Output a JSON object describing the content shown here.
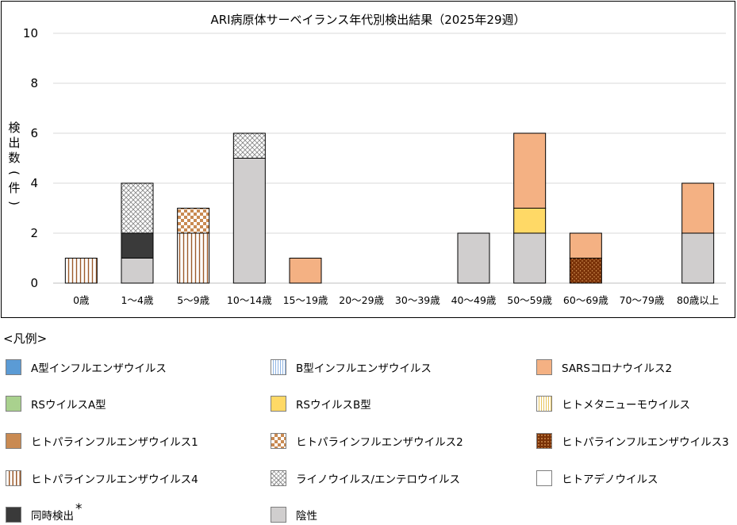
{
  "chart_data": {
    "type": "bar",
    "stacked": true,
    "title": "ARI病原体サーベイランス年代別検出結果（2025年29週）",
    "ylabel": "検出数(件)",
    "xlabel": "",
    "ylim": [
      0,
      10
    ],
    "yticks": [
      "0",
      "2",
      "4",
      "6",
      "8",
      "10"
    ],
    "grid": true,
    "categories": [
      "0歳",
      "1～4歳",
      "5～9歳",
      "10～14歳",
      "15～19歳",
      "20～29歳",
      "30～39歳",
      "40～49歳",
      "50～59歳",
      "60～69歳",
      "70～79歳",
      "80歳以上"
    ],
    "series": [
      {
        "name": "陰性",
        "pattern": "negative",
        "values": [
          0,
          1,
          0,
          5,
          0,
          0,
          0,
          2,
          2,
          0,
          0,
          2
        ]
      },
      {
        "name": "同時検出",
        "pattern": "coinfection",
        "values": [
          0,
          1,
          0,
          0,
          0,
          0,
          0,
          0,
          0,
          0,
          0,
          0
        ]
      },
      {
        "name": "ヒトパラインフルエンザウイルス4",
        "pattern": "hpiv4",
        "values": [
          1,
          0,
          2,
          0,
          0,
          0,
          0,
          0,
          0,
          0,
          0,
          0
        ]
      },
      {
        "name": "ヒトパラインフルエンザウイルス3",
        "pattern": "hpiv3",
        "values": [
          0,
          0,
          0,
          0,
          0,
          0,
          0,
          0,
          0,
          1,
          0,
          0
        ]
      },
      {
        "name": "RSウイルスB型",
        "pattern": "rsvb",
        "values": [
          0,
          0,
          0,
          0,
          0,
          0,
          0,
          0,
          1,
          0,
          0,
          0
        ]
      },
      {
        "name": "ヒトパラインフルエンザウイルス2",
        "pattern": "hpiv2",
        "values": [
          0,
          0,
          1,
          0,
          0,
          0,
          0,
          0,
          0,
          0,
          0,
          0
        ]
      },
      {
        "name": "ライノウイルス/エンテロウイルス",
        "pattern": "rhino",
        "values": [
          0,
          2,
          0,
          1,
          0,
          0,
          0,
          0,
          0,
          0,
          0,
          0
        ]
      },
      {
        "name": "SARSコロナウイルス2",
        "pattern": "sars",
        "values": [
          0,
          0,
          0,
          0,
          1,
          0,
          0,
          0,
          3,
          1,
          0,
          2
        ]
      }
    ]
  },
  "legend": {
    "heading": "<凡例>",
    "items": [
      {
        "label": "A型インフルエンザウイルス",
        "pattern": "fluA"
      },
      {
        "label": "B型インフルエンザウイルス",
        "pattern": "fluB"
      },
      {
        "label": "SARSコロナウイルス2",
        "pattern": "sars"
      },
      {
        "label": "RSウイルスA型",
        "pattern": "rsva"
      },
      {
        "label": "RSウイルスB型",
        "pattern": "rsvb"
      },
      {
        "label": "ヒトメタニューモウイルス",
        "pattern": "hmpv"
      },
      {
        "label": "ヒトパラインフルエンザウイルス1",
        "pattern": "hpiv1"
      },
      {
        "label": "ヒトパラインフルエンザウイルス2",
        "pattern": "hpiv2"
      },
      {
        "label": "ヒトパラインフルエンザウイルス3",
        "pattern": "hpiv3"
      },
      {
        "label": "ヒトパラインフルエンザウイルス4",
        "pattern": "hpiv4"
      },
      {
        "label": "ライノウイルス/エンテロウイルス",
        "pattern": "rhino"
      },
      {
        "label": "ヒトアデノウイルス",
        "pattern": "adeno"
      },
      {
        "label": "同時検出",
        "pattern": "coinfection",
        "note": "*"
      },
      {
        "label": "陰性",
        "pattern": "negative"
      }
    ]
  }
}
